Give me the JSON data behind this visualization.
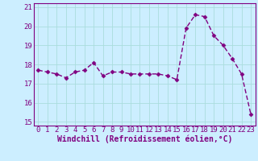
{
  "x": [
    0,
    1,
    2,
    3,
    4,
    5,
    6,
    7,
    8,
    9,
    10,
    11,
    12,
    13,
    14,
    15,
    16,
    17,
    18,
    19,
    20,
    21,
    22,
    23
  ],
  "y": [
    17.7,
    17.6,
    17.5,
    17.3,
    17.6,
    17.7,
    18.1,
    17.4,
    17.6,
    17.6,
    17.5,
    17.5,
    17.5,
    17.5,
    17.4,
    17.2,
    19.9,
    20.6,
    20.5,
    19.5,
    19.0,
    18.3,
    17.5,
    15.4
  ],
  "line_color": "#800080",
  "marker": "D",
  "marker_size": 2.5,
  "bg_color": "#cceeff",
  "grid_color": "#aadddd",
  "xlabel": "Windchill (Refroidissement éolien,°C)",
  "ylim": [
    14.8,
    21.2
  ],
  "xlim": [
    -0.5,
    23.5
  ],
  "yticks": [
    15,
    16,
    17,
    18,
    19,
    20,
    21
  ],
  "xticks": [
    0,
    1,
    2,
    3,
    4,
    5,
    6,
    7,
    8,
    9,
    10,
    11,
    12,
    13,
    14,
    15,
    16,
    17,
    18,
    19,
    20,
    21,
    22,
    23
  ],
  "xlabel_fontsize": 7,
  "tick_fontsize": 6.5,
  "axis_color": "#800080",
  "text_color": "#800080",
  "line_width": 1.0
}
